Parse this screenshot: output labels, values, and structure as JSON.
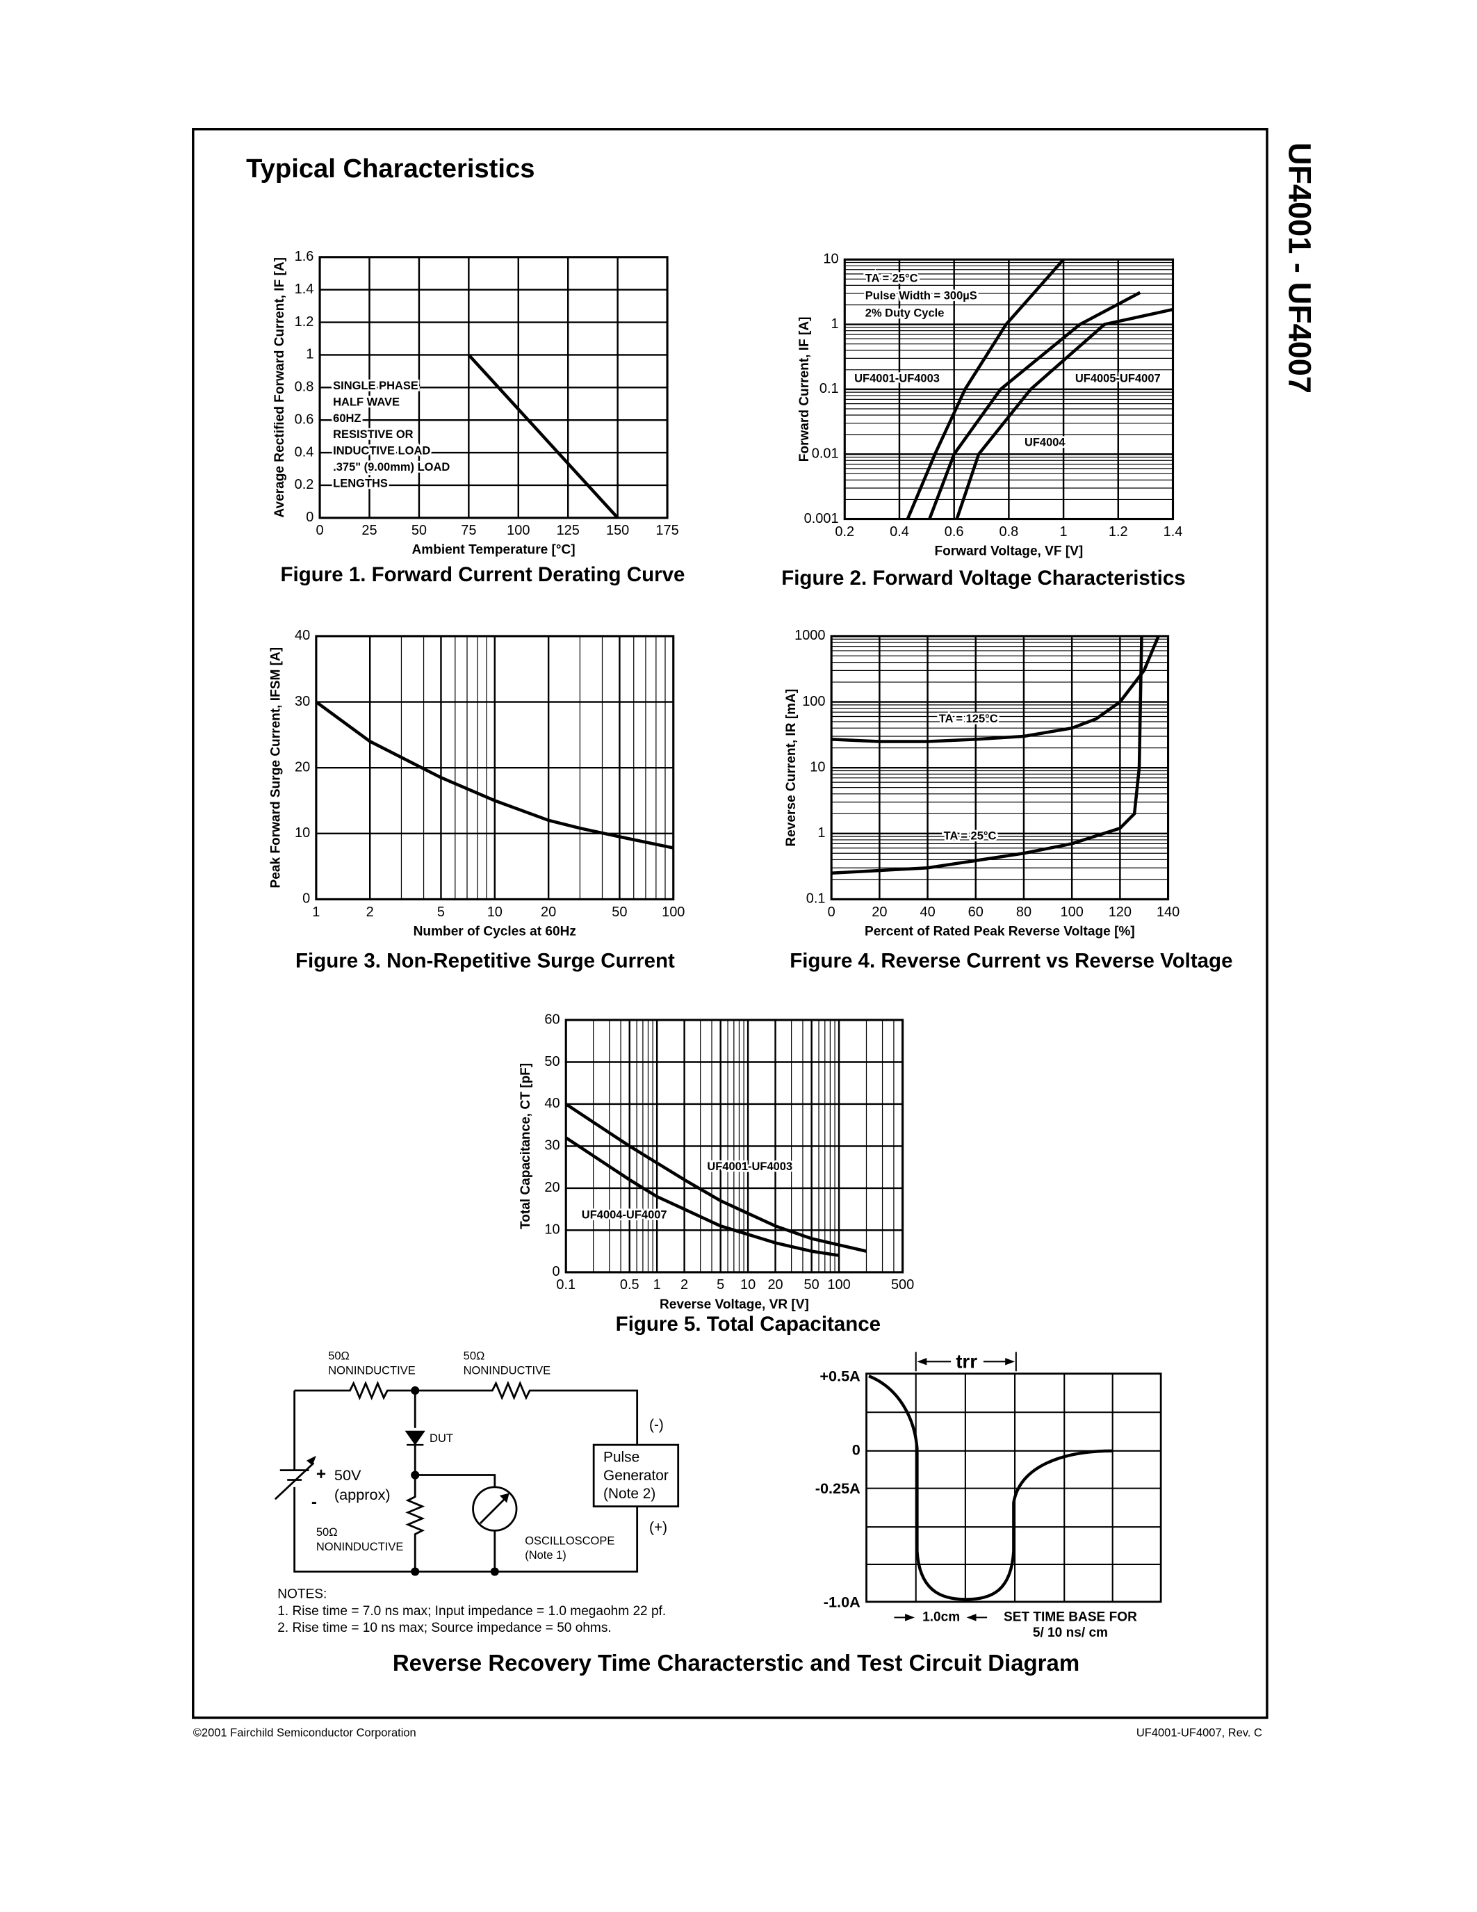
{
  "header": {
    "title": "Typical Characteristics",
    "side_title": "UF4001 - UF4007"
  },
  "chart_data": [
    {
      "type": "line",
      "title": "Figure 1. Forward Current Derating Curve",
      "xlabel": "Ambient Temperature [°C]",
      "ylabel": "Average Rectified Forward Current, IF [A]",
      "xlim": [
        0,
        175
      ],
      "ylim": [
        0,
        1.6
      ],
      "xticks": [
        0,
        25,
        50,
        75,
        100,
        125,
        150,
        175
      ],
      "yticks": [
        0,
        0.2,
        0.4,
        0.6,
        0.8,
        1,
        1.2,
        1.4,
        1.6
      ],
      "grid": true,
      "series": [
        {
          "color": "#000000",
          "x": [
            75,
            150
          ],
          "values": [
            1,
            0
          ]
        }
      ],
      "annotations": [
        "SINGLE PHASE",
        "HALF WAVE",
        "60HZ",
        "RESISTIVE OR",
        "INDUCTIVE LOAD",
        ".375\" (9.00mm) LOAD",
        "LENGTHS"
      ]
    },
    {
      "type": "line",
      "title": "Figure 2. Forward Voltage Characteristics",
      "xlabel": "Forward Voltage, VF [V]",
      "ylabel": "Forward Current, IF [A]",
      "yscale": "log",
      "xlim": [
        0.2,
        1.4
      ],
      "ylim": [
        0.001,
        10
      ],
      "xticks": [
        0.2,
        0.4,
        0.6,
        0.8,
        1,
        1.2,
        1.4
      ],
      "yticks": [
        0.001,
        0.01,
        0.1,
        1,
        10
      ],
      "grid": true,
      "series": [
        {
          "name": "UF4001-UF4003",
          "color": "#000000",
          "x": [
            0.43,
            0.53,
            0.64,
            0.79,
            1.0
          ],
          "values": [
            0.001,
            0.01,
            0.1,
            1,
            10
          ]
        },
        {
          "name": "UF4004",
          "color": "#000000",
          "x": [
            0.51,
            0.6,
            0.77,
            1.06,
            1.28
          ],
          "values": [
            0.001,
            0.01,
            0.1,
            1,
            3.1
          ]
        },
        {
          "name": "UF4005-UF4007",
          "color": "#000000",
          "x": [
            0.61,
            0.69,
            0.88,
            1.15,
            1.4
          ],
          "values": [
            0.001,
            0.01,
            0.1,
            1,
            1.7
          ]
        }
      ],
      "annotations": [
        "TA = 25°C",
        "Pulse Width = 300µS",
        "2% Duty Cycle"
      ]
    },
    {
      "type": "line",
      "title": "Figure 3. Non-Repetitive Surge Current",
      "xlabel": "Number of Cycles at 60Hz",
      "ylabel": "Peak Forward Surge Current, IFSM [A]",
      "xscale": "log",
      "xlim": [
        1,
        100
      ],
      "ylim": [
        0,
        40
      ],
      "xticks": [
        1,
        2,
        5,
        10,
        20,
        50,
        100
      ],
      "yticks": [
        0,
        10,
        20,
        30,
        40
      ],
      "grid": true,
      "series": [
        {
          "color": "#000000",
          "x": [
            1,
            2,
            5,
            10,
            20,
            30,
            50,
            100
          ],
          "values": [
            30,
            24,
            18.5,
            15,
            12,
            10.8,
            9.5,
            7.8
          ]
        }
      ],
      "annotations": []
    },
    {
      "type": "line",
      "title": "Figure 4. Reverse Current vs Reverse Voltage",
      "xlabel": "Percent of Rated Peak Reverse Voltage [%]",
      "ylabel": "Reverse Current, IR [mA]",
      "yscale": "log",
      "xlim": [
        0,
        140
      ],
      "ylim": [
        0.1,
        1000
      ],
      "xticks": [
        0,
        20,
        40,
        60,
        80,
        100,
        120,
        140
      ],
      "yticks": [
        0.1,
        1,
        10,
        100,
        1000
      ],
      "grid": true,
      "series": [
        {
          "name": "TA = 125°C",
          "color": "#000000",
          "x": [
            0,
            20,
            40,
            60,
            80,
            100,
            110,
            120,
            130,
            136
          ],
          "values": [
            27,
            25,
            25,
            27,
            30,
            40,
            55,
            100,
            300,
            1000
          ]
        },
        {
          "name": "TA = 25°C",
          "color": "#000000",
          "x": [
            0,
            40,
            80,
            100,
            120,
            126,
            128,
            129
          ],
          "values": [
            0.25,
            0.3,
            0.5,
            0.7,
            1.2,
            2,
            10,
            1000
          ]
        }
      ],
      "annotations": []
    },
    {
      "type": "line",
      "title": "Figure 5. Total Capacitance",
      "xlabel": "Reverse Voltage, VR [V]",
      "ylabel": "Total Capacitance, CT [pF]",
      "xscale": "log",
      "xlim": [
        0.1,
        500
      ],
      "ylim": [
        0,
        60
      ],
      "xticks": [
        0.1,
        0.5,
        1,
        2,
        5,
        10,
        20,
        50,
        100,
        500
      ],
      "yticks": [
        0,
        10,
        20,
        30,
        40,
        50,
        60
      ],
      "grid": true,
      "series": [
        {
          "name": "UF4001-UF4003",
          "color": "#000000",
          "x": [
            0.1,
            0.5,
            1,
            2,
            5,
            10,
            20,
            50,
            100,
            200
          ],
          "values": [
            40,
            30,
            26,
            22,
            17,
            14,
            11,
            8,
            6.5,
            5
          ]
        },
        {
          "name": "UF4004-UF4007",
          "color": "#000000",
          "x": [
            0.1,
            0.5,
            1,
            2,
            5,
            10,
            20,
            50,
            100
          ],
          "values": [
            32,
            22,
            18,
            15,
            11,
            9,
            7,
            5,
            4
          ]
        }
      ],
      "annotations": []
    }
  ],
  "recovery": {
    "circuit": {
      "r1": [
        "50Ω",
        "NONINDUCTIVE"
      ],
      "r2": [
        "50Ω",
        "NONINDUCTIVE"
      ],
      "r3": [
        "50Ω",
        "NONINDUCTIVE"
      ],
      "dut": "DUT",
      "source": [
        "50V",
        "(approx)"
      ],
      "scope": [
        "OSCILLOSCOPE",
        "(Note 1)"
      ],
      "generator": [
        "Pulse",
        "Generator",
        "(Note 2)"
      ],
      "minus": "(-)",
      "plus": "(+)"
    },
    "notes": [
      "NOTES:",
      "1. Rise time = 7.0 ns max; Input impedance = 1.0 megaohm 22 pf.",
      "2. Rise time = 10 ns max; Source impedance = 50 ohms."
    ],
    "waveform": {
      "trr": "trr",
      "levels": [
        "+0.5A",
        "0",
        "-0.25A",
        "-1.0A"
      ],
      "scale": "1.0cm",
      "base": [
        "SET TIME BASE FOR",
        "5/ 10 ns/ cm"
      ]
    },
    "caption": "Reverse Recovery Time Characterstic and Test Circuit Diagram"
  },
  "footer": {
    "left": "©2001 Fairchild Semiconductor Corporation",
    "right": "UF4001-UF4007, Rev. C"
  }
}
